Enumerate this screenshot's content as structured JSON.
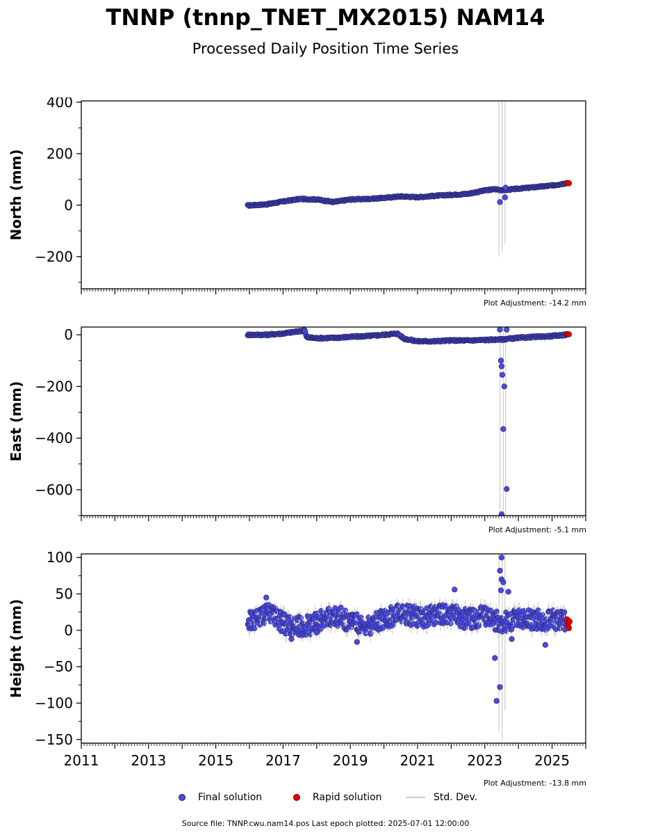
{
  "title": "TNNP (tnnp_TNET_MX2015) NAM14",
  "subtitle": "Processed Daily Position Time Series",
  "legend": {
    "final": "Final solution",
    "rapid": "Rapid solution",
    "std": "Std. Dev.",
    "colors": {
      "final": "#4a4ae8",
      "rapid": "#e00000",
      "std": "#cccccc"
    }
  },
  "source": "Source file: TNNP.cwu.nam14.pos  Last epoch plotted: 2025-07-01 12:00:00",
  "chart_data": [
    {
      "type": "scatter",
      "ylabel": "North (mm)",
      "adjustment": "Plot Adjustment: -14.2 mm",
      "xlim": [
        2011,
        2026
      ],
      "ylim": [
        -325,
        405
      ],
      "yticks": [
        -200,
        0,
        200,
        400
      ],
      "ytick_labels": [
        "−200",
        "0",
        "200",
        "400"
      ],
      "series": {
        "final": [
          [
            2016.0,
            -1
          ],
          [
            2016.5,
            3
          ],
          [
            2017.0,
            14
          ],
          [
            2017.5,
            24
          ],
          [
            2018.0,
            22
          ],
          [
            2018.5,
            12
          ],
          [
            2019.0,
            22
          ],
          [
            2019.5,
            24
          ],
          [
            2020.0,
            28
          ],
          [
            2020.5,
            34
          ],
          [
            2021.0,
            31
          ],
          [
            2021.5,
            36
          ],
          [
            2022.0,
            40
          ],
          [
            2022.5,
            44
          ],
          [
            2023.0,
            57
          ],
          [
            2023.3,
            62
          ],
          [
            2023.55,
            58
          ],
          [
            2024.0,
            64
          ],
          [
            2024.5,
            70
          ],
          [
            2025.0,
            76
          ],
          [
            2025.4,
            85
          ]
        ],
        "rapid": [
          [
            2025.45,
            86
          ],
          [
            2025.5,
            85
          ]
        ],
        "outliers": [
          [
            2023.45,
            12
          ],
          [
            2023.6,
            30
          ],
          [
            2023.62,
            68
          ]
        ],
        "std_spikes": [
          [
            2023.42,
            -200,
            500
          ],
          [
            2023.52,
            -180,
            500
          ],
          [
            2023.6,
            -150,
            500
          ]
        ]
      },
      "xticks": [
        2011,
        2013,
        2015,
        2017,
        2019,
        2021,
        2023,
        2025
      ]
    },
    {
      "type": "scatter",
      "ylabel": "East (mm)",
      "adjustment": "Plot Adjustment: -5.1 mm",
      "xlim": [
        2011,
        2026
      ],
      "ylim": [
        -700,
        30
      ],
      "yticks": [
        -600,
        -400,
        -200,
        0
      ],
      "ytick_labels": [
        "−600",
        "−400",
        "−200",
        "0"
      ],
      "series": {
        "final": [
          [
            2016.0,
            0
          ],
          [
            2016.5,
            0
          ],
          [
            2017.0,
            5
          ],
          [
            2017.5,
            14
          ],
          [
            2017.65,
            18
          ],
          [
            2017.7,
            -10
          ],
          [
            2018.0,
            -13
          ],
          [
            2018.5,
            -12
          ],
          [
            2019.0,
            -8
          ],
          [
            2019.5,
            -5
          ],
          [
            2020.0,
            0
          ],
          [
            2020.4,
            5
          ],
          [
            2020.6,
            -15
          ],
          [
            2021.0,
            -25
          ],
          [
            2021.5,
            -25
          ],
          [
            2022.0,
            -22
          ],
          [
            2022.5,
            -22
          ],
          [
            2023.0,
            -20
          ],
          [
            2023.5,
            -18
          ],
          [
            2024.0,
            -12
          ],
          [
            2024.5,
            -8
          ],
          [
            2025.0,
            -5
          ],
          [
            2025.4,
            0
          ]
        ],
        "rapid": [
          [
            2025.45,
            3
          ],
          [
            2025.5,
            2
          ]
        ],
        "outliers": [
          [
            2023.45,
            20
          ],
          [
            2023.48,
            -100
          ],
          [
            2023.5,
            -122
          ],
          [
            2023.52,
            -155
          ],
          [
            2023.58,
            -200
          ],
          [
            2023.55,
            -365
          ],
          [
            2023.65,
            -597
          ],
          [
            2023.5,
            -695
          ],
          [
            2023.65,
            20
          ]
        ],
        "std_spikes": [
          [
            2023.45,
            -700,
            30
          ],
          [
            2023.55,
            -700,
            30
          ],
          [
            2023.62,
            -700,
            30
          ]
        ]
      },
      "xticks": [
        2011,
        2013,
        2015,
        2017,
        2019,
        2021,
        2023,
        2025
      ]
    },
    {
      "type": "scatter",
      "ylabel": "Height (mm)",
      "adjustment": "Plot Adjustment: -13.8 mm",
      "xlim": [
        2011,
        2026
      ],
      "ylim": [
        -155,
        105
      ],
      "yticks": [
        -150,
        -100,
        -50,
        0,
        50,
        100
      ],
      "ytick_labels": [
        "−150",
        "−100",
        "−50",
        "0",
        "50",
        "100"
      ],
      "series": {
        "band": [
          [
            2016.0,
            12
          ],
          [
            2016.5,
            25
          ],
          [
            2017.0,
            10
          ],
          [
            2017.5,
            5
          ],
          [
            2018.0,
            10
          ],
          [
            2018.5,
            22
          ],
          [
            2019.0,
            12
          ],
          [
            2019.5,
            5
          ],
          [
            2020.0,
            15
          ],
          [
            2020.5,
            25
          ],
          [
            2021.0,
            18
          ],
          [
            2021.5,
            20
          ],
          [
            2022.0,
            22
          ],
          [
            2022.5,
            15
          ],
          [
            2023.0,
            20
          ],
          [
            2023.5,
            10
          ],
          [
            2024.0,
            18
          ],
          [
            2024.5,
            15
          ],
          [
            2025.0,
            14
          ],
          [
            2025.4,
            12
          ]
        ],
        "band_spread": 14,
        "rapid": [
          [
            2025.45,
            15
          ],
          [
            2025.47,
            8
          ],
          [
            2025.5,
            3
          ],
          [
            2025.52,
            12
          ]
        ],
        "outliers": [
          [
            2016.5,
            45
          ],
          [
            2017.25,
            -12
          ],
          [
            2018.0,
            -3
          ],
          [
            2019.2,
            -16
          ],
          [
            2022.1,
            56
          ],
          [
            2023.3,
            -38
          ],
          [
            2023.35,
            -97
          ],
          [
            2023.45,
            -78
          ],
          [
            2023.5,
            100
          ],
          [
            2023.45,
            82
          ],
          [
            2023.5,
            70
          ],
          [
            2023.55,
            66
          ],
          [
            2023.48,
            55
          ],
          [
            2023.7,
            53
          ],
          [
            2023.8,
            -12
          ],
          [
            2024.8,
            -20
          ]
        ],
        "std_spikes": [
          [
            2023.42,
            -140,
            105
          ],
          [
            2023.52,
            -150,
            105
          ],
          [
            2023.6,
            -110,
            105
          ]
        ]
      },
      "xticks": [
        2011,
        2013,
        2015,
        2017,
        2019,
        2021,
        2023,
        2025
      ],
      "xtick_labels": [
        "2011",
        "2013",
        "2015",
        "2017",
        "2019",
        "2021",
        "2023",
        "2025"
      ]
    }
  ]
}
